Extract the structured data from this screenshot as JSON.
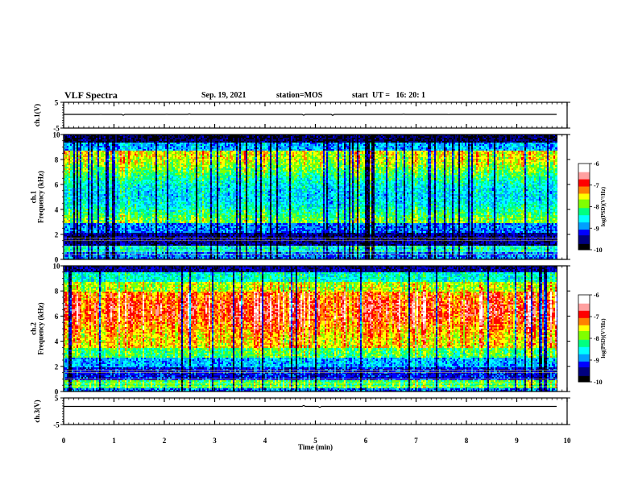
{
  "header": {
    "title": "VLF Spectra",
    "date": "Sep. 19, 2021",
    "station": "station=MOS",
    "start_ut": "start  UT =   16: 20: 1"
  },
  "chart_data": [
    {
      "type": "line",
      "panel": "ch1-waveform",
      "ylabel": "ch.1(V)",
      "ylim": [
        -5,
        5
      ],
      "yticks": [
        "5",
        "-5"
      ],
      "xlim": [
        0,
        10
      ],
      "series": [
        {
          "values_description_free": true,
          "level": 0
        }
      ]
    },
    {
      "type": "heatmap",
      "panel": "ch1-spectrogram",
      "ylabel": "ch.1\nFrequency (kHz)",
      "ylim": [
        0,
        10
      ],
      "yticks": [
        "0",
        "2",
        "4",
        "6",
        "8",
        "10"
      ],
      "xlim": [
        0,
        9.85
      ],
      "colorbar": {
        "label": "log(PSD)(V²/Hz)",
        "ticks": [
          "-6",
          "-7",
          "-8",
          "-9",
          "-10"
        ],
        "range": [
          -10,
          -6
        ]
      }
    },
    {
      "type": "heatmap",
      "panel": "ch2-spectrogram",
      "ylabel": "ch.2\nFrequency (kHz)",
      "ylim": [
        0,
        10
      ],
      "yticks": [
        "0",
        "2",
        "4",
        "6",
        "8",
        "10"
      ],
      "xlim": [
        0,
        9.85
      ],
      "colorbar": {
        "label": "log(PSD)(V²/Hz)",
        "ticks": [
          "-6",
          "-7",
          "-8",
          "-9",
          "-10"
        ],
        "range": [
          -10,
          -6
        ]
      }
    },
    {
      "type": "line",
      "panel": "ch3-waveform",
      "ylabel": "ch.3(V)",
      "ylim": [
        -5,
        5
      ],
      "yticks": [
        "5",
        "-5"
      ],
      "xlim": [
        0,
        10
      ],
      "xlabel": "Time  (min)",
      "xticks": [
        "0",
        "1",
        "2",
        "3",
        "4",
        "5",
        "6",
        "7",
        "8",
        "9",
        "10"
      ]
    }
  ],
  "colors": {
    "colormap": [
      "#000000",
      "#00007f",
      "#0000ff",
      "#00a0ff",
      "#00ffff",
      "#00ff80",
      "#80ff00",
      "#ffff00",
      "#ff8000",
      "#ff0000",
      "#ffa0a0",
      "#ffffff"
    ],
    "axis": "#000000"
  }
}
